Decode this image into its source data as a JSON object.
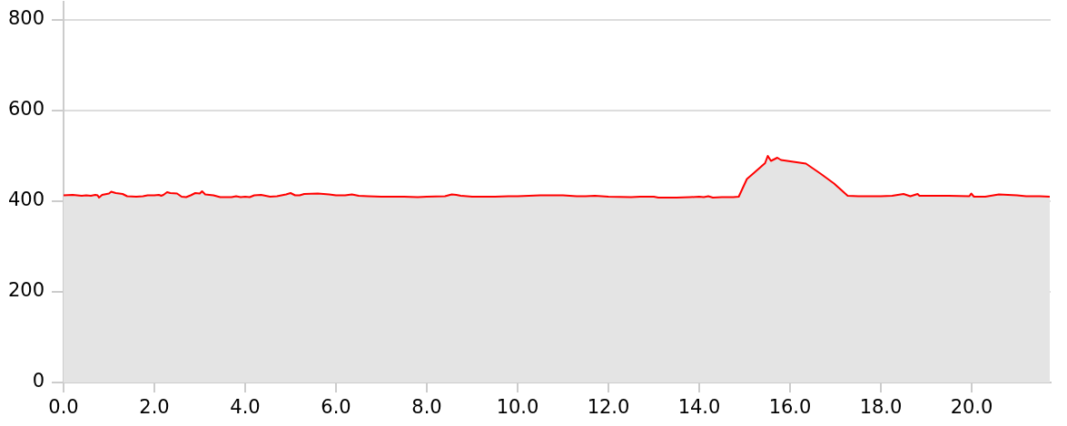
{
  "chart_data": {
    "type": "area",
    "color": "#ff0000",
    "x": [
      0.0,
      0.2,
      0.4,
      0.5,
      0.6,
      0.7,
      0.75,
      0.78,
      0.85,
      1.0,
      1.05,
      1.15,
      1.3,
      1.4,
      1.6,
      1.75,
      1.85,
      2.0,
      2.1,
      2.15,
      2.2,
      2.28,
      2.35,
      2.5,
      2.6,
      2.7,
      2.8,
      2.9,
      3.0,
      3.05,
      3.12,
      3.3,
      3.45,
      3.7,
      3.8,
      3.9,
      4.0,
      4.1,
      4.2,
      4.35,
      4.55,
      4.7,
      4.9,
      5.0,
      5.1,
      5.2,
      5.3,
      5.6,
      5.85,
      6.0,
      6.2,
      6.35,
      6.5,
      6.7,
      7.0,
      7.5,
      7.8,
      8.0,
      8.4,
      8.55,
      8.65,
      8.75,
      9.0,
      9.5,
      9.8,
      10.0,
      10.5,
      10.9,
      11.0,
      11.3,
      11.5,
      11.7,
      12.0,
      12.5,
      12.7,
      13.0,
      13.1,
      13.5,
      13.8,
      14.0,
      14.1,
      14.2,
      14.3,
      14.5,
      14.75,
      14.87,
      15.05,
      15.2,
      15.45,
      15.51,
      15.58,
      15.72,
      15.8,
      16.35,
      16.67,
      16.97,
      17.27,
      17.5,
      18.0,
      18.25,
      18.5,
      18.65,
      18.81,
      18.85,
      19.0,
      19.5,
      19.95,
      19.99,
      20.05,
      20.3,
      20.6,
      21.0,
      21.2,
      21.5,
      21.72
    ],
    "values": [
      413,
      414,
      412,
      413,
      412,
      414,
      413,
      408,
      414,
      417,
      421,
      418,
      416,
      411,
      410,
      411,
      413,
      413,
      414,
      412,
      414,
      420,
      418,
      417,
      410,
      409,
      413,
      418,
      417,
      422,
      415,
      413,
      409,
      409,
      411,
      409,
      410,
      409,
      413,
      414,
      410,
      411,
      415,
      418,
      413,
      413,
      416,
      417,
      415,
      413,
      413,
      415,
      412,
      411,
      410,
      410,
      409,
      410,
      411,
      415,
      414,
      412,
      410,
      410,
      411,
      411,
      413,
      413,
      413,
      411,
      411,
      412,
      410,
      409,
      410,
      410,
      408,
      408,
      409,
      410,
      409,
      411,
      408,
      409,
      409,
      410,
      449,
      462,
      484,
      500,
      489,
      496,
      491,
      483,
      461,
      439,
      412,
      411,
      411,
      412,
      416,
      411,
      416,
      412,
      412,
      412,
      411,
      417,
      410,
      410,
      415,
      413,
      411,
      411,
      410
    ],
    "xlim": [
      0,
      21.74
    ],
    "ylim": [
      0,
      840
    ],
    "xticks": [
      {
        "value": 0,
        "label": "0.0"
      },
      {
        "value": 2,
        "label": "2.0"
      },
      {
        "value": 4,
        "label": "4.0"
      },
      {
        "value": 6,
        "label": "6.0"
      },
      {
        "value": 8,
        "label": "8.0"
      },
      {
        "value": 10,
        "label": "10.0"
      },
      {
        "value": 12,
        "label": "12.0"
      },
      {
        "value": 14,
        "label": "14.0"
      },
      {
        "value": 16,
        "label": "16.0"
      },
      {
        "value": 18,
        "label": "18.0"
      },
      {
        "value": 20,
        "label": "20.0"
      }
    ],
    "yticks": [
      0,
      200,
      400,
      600,
      800
    ],
    "grid": "y"
  }
}
